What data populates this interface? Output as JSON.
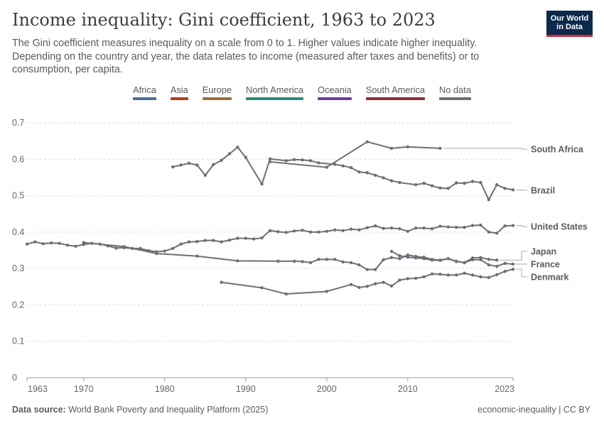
{
  "title": "Income inequality: Gini coefficient, 1963 to 2023",
  "subtitle": "The Gini coefficient measures inequality on a scale from 0 to 1. Higher values indicate higher inequality. Depending on the country and year, the data relates to income (measured after taxes and benefits) or to consumption, per capita.",
  "logo": {
    "line1": "Our World",
    "line2": "in Data"
  },
  "legend": [
    {
      "label": "Africa",
      "color": "#4c6a9c"
    },
    {
      "label": "Asia",
      "color": "#bd3a18"
    },
    {
      "label": "Europe",
      "color": "#9a6f3a"
    },
    {
      "label": "North America",
      "color": "#2e8a74"
    },
    {
      "label": "Oceania",
      "color": "#6f3e98"
    },
    {
      "label": "South America",
      "color": "#8b2e3a"
    },
    {
      "label": "No data",
      "color": "#6d6f76"
    }
  ],
  "footer": {
    "source_label": "Data source:",
    "source_text": "World Bank Poverty and Inequality Platform (2025)",
    "right_text": "economic-inequality | CC BY"
  },
  "chart_data": {
    "type": "line",
    "xlim": [
      1963,
      2023
    ],
    "ylim": [
      0,
      0.7
    ],
    "x_ticks": [
      1963,
      1970,
      1980,
      1990,
      2000,
      2010,
      2023
    ],
    "y_ticks": [
      0,
      0.1,
      0.2,
      0.3,
      0.4,
      0.5,
      0.6,
      0.7
    ],
    "y_tick_labels": [
      "0",
      "0.1",
      "0.2",
      "0.3",
      "0.4",
      "0.5",
      "0.6",
      "0.7"
    ],
    "grid": "horizontal dashed",
    "line_color": "#6d6f76",
    "series": [
      {
        "name": "South Africa",
        "points": [
          [
            1993,
            0.593
          ],
          [
            2000,
            0.578
          ],
          [
            2005,
            0.648
          ],
          [
            2008,
            0.63
          ],
          [
            2010,
            0.634
          ],
          [
            2014,
            0.63
          ]
        ]
      },
      {
        "name": "Brazil",
        "points": [
          [
            1981,
            0.579
          ],
          [
            1982,
            0.584
          ],
          [
            1983,
            0.589
          ],
          [
            1984,
            0.584
          ],
          [
            1985,
            0.556
          ],
          [
            1986,
            0.585
          ],
          [
            1987,
            0.597
          ],
          [
            1988,
            0.615
          ],
          [
            1989,
            0.633
          ],
          [
            1990,
            0.605
          ],
          [
            1992,
            0.532
          ],
          [
            1993,
            0.601
          ],
          [
            1995,
            0.596
          ],
          [
            1996,
            0.599
          ],
          [
            1997,
            0.598
          ],
          [
            1998,
            0.596
          ],
          [
            1999,
            0.59
          ],
          [
            2001,
            0.586
          ],
          [
            2002,
            0.582
          ],
          [
            2003,
            0.577
          ],
          [
            2004,
            0.565
          ],
          [
            2005,
            0.563
          ],
          [
            2006,
            0.556
          ],
          [
            2007,
            0.549
          ],
          [
            2008,
            0.541
          ],
          [
            2009,
            0.536
          ],
          [
            2011,
            0.53
          ],
          [
            2012,
            0.534
          ],
          [
            2013,
            0.527
          ],
          [
            2014,
            0.521
          ],
          [
            2015,
            0.52
          ],
          [
            2016,
            0.535
          ],
          [
            2017,
            0.534
          ],
          [
            2018,
            0.539
          ],
          [
            2019,
            0.536
          ],
          [
            2020,
            0.489
          ],
          [
            2021,
            0.53
          ],
          [
            2022,
            0.52
          ],
          [
            2023,
            0.516
          ]
        ]
      },
      {
        "name": "United States",
        "points": [
          [
            1963,
            0.367
          ],
          [
            1964,
            0.373
          ],
          [
            1965,
            0.368
          ],
          [
            1966,
            0.37
          ],
          [
            1967,
            0.369
          ],
          [
            1968,
            0.364
          ],
          [
            1969,
            0.361
          ],
          [
            1970,
            0.366
          ],
          [
            1971,
            0.369
          ],
          [
            1972,
            0.367
          ],
          [
            1973,
            0.362
          ],
          [
            1974,
            0.356
          ],
          [
            1975,
            0.357
          ],
          [
            1976,
            0.355
          ],
          [
            1977,
            0.355
          ],
          [
            1978,
            0.349
          ],
          [
            1979,
            0.346
          ],
          [
            1980,
            0.348
          ],
          [
            1981,
            0.355
          ],
          [
            1982,
            0.367
          ],
          [
            1983,
            0.373
          ],
          [
            1984,
            0.374
          ],
          [
            1985,
            0.377
          ],
          [
            1986,
            0.377
          ],
          [
            1987,
            0.373
          ],
          [
            1988,
            0.378
          ],
          [
            1989,
            0.383
          ],
          [
            1990,
            0.383
          ],
          [
            1991,
            0.381
          ],
          [
            1992,
            0.384
          ],
          [
            1993,
            0.404
          ],
          [
            1994,
            0.401
          ],
          [
            1995,
            0.399
          ],
          [
            1996,
            0.403
          ],
          [
            1997,
            0.405
          ],
          [
            1998,
            0.4
          ],
          [
            1999,
            0.4
          ],
          [
            2000,
            0.402
          ],
          [
            2001,
            0.406
          ],
          [
            2002,
            0.404
          ],
          [
            2003,
            0.408
          ],
          [
            2004,
            0.406
          ],
          [
            2005,
            0.412
          ],
          [
            2006,
            0.417
          ],
          [
            2007,
            0.41
          ],
          [
            2008,
            0.411
          ],
          [
            2009,
            0.409
          ],
          [
            2010,
            0.402
          ],
          [
            2011,
            0.411
          ],
          [
            2012,
            0.411
          ],
          [
            2013,
            0.409
          ],
          [
            2014,
            0.416
          ],
          [
            2015,
            0.414
          ],
          [
            2016,
            0.413
          ],
          [
            2017,
            0.413
          ],
          [
            2018,
            0.418
          ],
          [
            2019,
            0.419
          ],
          [
            2020,
            0.4
          ],
          [
            2021,
            0.397
          ],
          [
            2022,
            0.417
          ],
          [
            2023,
            0.418
          ]
        ]
      },
      {
        "name": "Japan",
        "points": [
          [
            2008,
            0.347
          ],
          [
            2009,
            0.335
          ],
          [
            2010,
            0.331
          ],
          [
            2011,
            0.329
          ],
          [
            2012,
            0.327
          ],
          [
            2013,
            0.323
          ],
          [
            2014,
            0.322
          ],
          [
            2015,
            0.327
          ],
          [
            2016,
            0.32
          ],
          [
            2017,
            0.316
          ],
          [
            2018,
            0.329
          ],
          [
            2019,
            0.33
          ],
          [
            2020,
            0.325
          ],
          [
            2021,
            0.323
          ]
        ]
      },
      {
        "name": "France",
        "points": [
          [
            1970,
            0.371
          ],
          [
            1975,
            0.36
          ],
          [
            1979,
            0.341
          ],
          [
            1984,
            0.334
          ],
          [
            1989,
            0.321
          ],
          [
            1994,
            0.32
          ],
          [
            1996,
            0.32
          ],
          [
            1997,
            0.319
          ],
          [
            1998,
            0.316
          ],
          [
            1999,
            0.325
          ],
          [
            2000,
            0.325
          ],
          [
            2001,
            0.325
          ],
          [
            2002,
            0.318
          ],
          [
            2003,
            0.316
          ],
          [
            2004,
            0.31
          ],
          [
            2005,
            0.297
          ],
          [
            2006,
            0.297
          ],
          [
            2007,
            0.324
          ],
          [
            2008,
            0.33
          ],
          [
            2009,
            0.327
          ],
          [
            2010,
            0.337
          ],
          [
            2011,
            0.333
          ],
          [
            2012,
            0.331
          ],
          [
            2013,
            0.325
          ],
          [
            2014,
            0.323
          ],
          [
            2015,
            0.327
          ],
          [
            2016,
            0.319
          ],
          [
            2017,
            0.316
          ],
          [
            2018,
            0.324
          ],
          [
            2019,
            0.324
          ],
          [
            2020,
            0.31
          ],
          [
            2021,
            0.306
          ],
          [
            2022,
            0.314
          ],
          [
            2023,
            0.312
          ]
        ]
      },
      {
        "name": "Denmark",
        "points": [
          [
            1987,
            0.262
          ],
          [
            1992,
            0.247
          ],
          [
            1995,
            0.23
          ],
          [
            2000,
            0.237
          ],
          [
            2003,
            0.256
          ],
          [
            2004,
            0.248
          ],
          [
            2005,
            0.251
          ],
          [
            2006,
            0.258
          ],
          [
            2007,
            0.262
          ],
          [
            2008,
            0.252
          ],
          [
            2009,
            0.268
          ],
          [
            2010,
            0.272
          ],
          [
            2011,
            0.273
          ],
          [
            2012,
            0.277
          ],
          [
            2013,
            0.285
          ],
          [
            2014,
            0.284
          ],
          [
            2015,
            0.282
          ],
          [
            2016,
            0.282
          ],
          [
            2017,
            0.287
          ],
          [
            2018,
            0.282
          ],
          [
            2019,
            0.277
          ],
          [
            2020,
            0.275
          ],
          [
            2021,
            0.283
          ],
          [
            2022,
            0.292
          ],
          [
            2023,
            0.298
          ]
        ]
      }
    ]
  }
}
